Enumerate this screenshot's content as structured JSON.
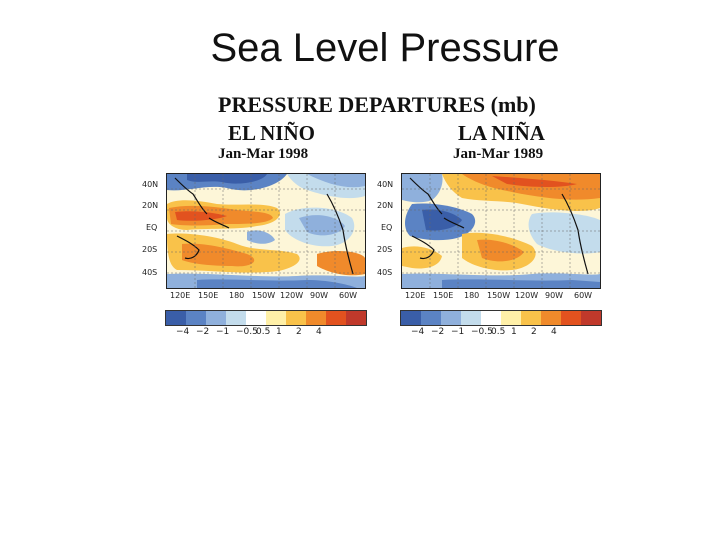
{
  "slide": {
    "title": "Sea Level Pressure"
  },
  "figure": {
    "title": "PRESSURE DEPARTURES (mb)",
    "panels": [
      {
        "label": "EL NIÑO",
        "period": "Jan-Mar 1998"
      },
      {
        "label": "LA NIÑA",
        "period": "Jan-Mar 1989"
      }
    ],
    "lat_labels": [
      "40N",
      "20N",
      "EQ",
      "20S",
      "40S"
    ],
    "lon_labels": [
      "120E",
      "150E",
      "180",
      "150W",
      "120W",
      "90W",
      "60W"
    ],
    "legend": {
      "tick_labels": [
        "−4",
        "−2",
        "−1",
        "−0.5",
        "0.5",
        "1",
        "2",
        "4"
      ],
      "colors": [
        "#3a5ea8",
        "#5b83c4",
        "#8fb0dc",
        "#c3dcec",
        "#ffffff",
        "#fff0a8",
        "#f9c24a",
        "#f08a2b",
        "#e2521f",
        "#c0392b"
      ]
    }
  }
}
